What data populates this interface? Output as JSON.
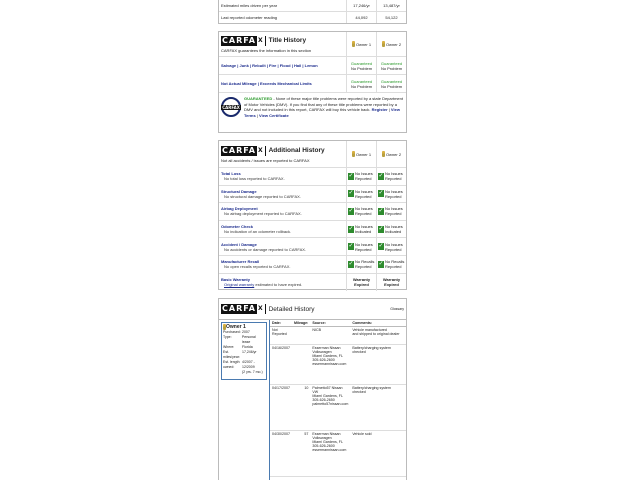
{
  "top_table": {
    "rows": [
      {
        "label": "Estimated miles driven per year",
        "o1": "17,246/yr",
        "o2": "13,487/yr"
      },
      {
        "label": "Last reported odometer reading",
        "o1": "44,092",
        "o2": "54,122"
      }
    ]
  },
  "logo_text": "CARFAX",
  "title_history": {
    "title": "Title History",
    "subtitle": "CARFAX guarantees the information in this section",
    "owner1": "Owner 1",
    "owner2": "Owner 2",
    "rows": [
      {
        "label": "Salvage | Junk | Rebuilt | Fire | Flood | Hail | Lemon",
        "o1a": "Guaranteed",
        "o1b": "No Problem",
        "o2a": "Guaranteed",
        "o2b": "No Problem"
      },
      {
        "label": "Not Actual Mileage | Exceeds Mechanical Limits",
        "o1a": "Guaranteed",
        "o1b": "No Problem",
        "o2a": "Guaranteed",
        "o2b": "No Problem"
      }
    ],
    "guarantee_label": "GUARANTEED",
    "guarantee_text": " - None of these major title problems were reported by a state Department of Motor Vehicles (DMV). If you find that any of these title problems were reported by a DMV and not included in this report, CARFAX will buy this vehicle back. ",
    "links": [
      "Register",
      "View Terms",
      "View Certificate"
    ]
  },
  "additional_history": {
    "title": "Additional History",
    "subtitle": "Not all accidents / issues are reported to CARFAX",
    "owner1": "Owner 1",
    "owner2": "Owner 2",
    "rows": [
      {
        "label": "Total Loss",
        "desc": "No total loss reported to CARFAX.",
        "o1": [
          "No Issues",
          "Reported"
        ],
        "o2": [
          "No Issues",
          "Reported"
        ]
      },
      {
        "label": "Structural Damage",
        "desc": "No structural damage reported to CARFAX.",
        "o1": [
          "No Issues",
          "Reported"
        ],
        "o2": [
          "No Issues",
          "Reported"
        ]
      },
      {
        "label": "Airbag Deployment",
        "desc": "No airbag deployment reported to CARFAX.",
        "o1": [
          "No Issues",
          "Reported"
        ],
        "o2": [
          "No Issues",
          "Reported"
        ]
      },
      {
        "label": "Odometer Check",
        "desc": "No indication of an odometer rollback.",
        "o1": [
          "No Issues",
          "Indicated"
        ],
        "o2": [
          "No Issues",
          "Indicated"
        ]
      },
      {
        "label": "Accident / Damage",
        "desc": "No accidents or damage reported to CARFAX.",
        "o1": [
          "No Issues",
          "Reported"
        ],
        "o2": [
          "No Issues",
          "Reported"
        ]
      },
      {
        "label": "Manufacturer Recall",
        "desc": "No open recalls reported to CARFAX.",
        "o1": [
          "No Recalls",
          "Reported"
        ],
        "o2": [
          "No Recalls",
          "Reported"
        ]
      }
    ],
    "warranty": {
      "label": "Basic Warranty",
      "link": "Original warranty",
      "desc": " estimated to have expired.",
      "o1": [
        "Warranty",
        "Expired"
      ],
      "o2": [
        "Warranty",
        "Expired"
      ]
    }
  },
  "detailed_history": {
    "title": "Detailed History",
    "glossary": "Glossary",
    "owner": {
      "title": "Owner 1",
      "fields": [
        [
          "Purchased:",
          "2007"
        ],
        [
          "Type:",
          "Personal lease"
        ],
        [
          "Where:",
          "Florida"
        ],
        [
          "Est. miles/year:",
          "17,246/yr"
        ],
        [
          "Est. length",
          "4/2007 -"
        ],
        [
          "owned:",
          "12/2009"
        ],
        [
          "",
          "(2 yrs. 7 mo.)"
        ]
      ]
    },
    "headers": [
      "Date:",
      "Mileage:",
      "Source:",
      "Comments:"
    ],
    "rows": [
      {
        "date": "Not Reported",
        "mileage": "",
        "source": [
          "NICB"
        ],
        "comments": [
          "Vehicle manufactured",
          "and shipped to original dealer"
        ]
      },
      {
        "date": "04/16/2007",
        "mileage": "",
        "source": [
          "Esserman Nissan",
          "Volkswagen",
          "Miami Gardens, FL",
          "305-626-2600",
          "essermannissan.com"
        ],
        "comments": [
          "Battery/charging system checked"
        ]
      },
      {
        "date": "04/17/2007",
        "mileage": "10",
        "source": [
          "Palmetto57 Nissan",
          "VW",
          "Miami Gardens, FL",
          "305-626-2650",
          "palmetto57nissan.com"
        ],
        "comments": [
          "Battery/charging system checked"
        ]
      },
      {
        "date": "04/30/2007",
        "mileage": "57",
        "source": [
          "Esserman Nissan",
          "Volkswagen",
          "Miami Gardens, FL",
          "305-626-2600",
          "essermannissan.com"
        ],
        "comments": [
          "Vehicle sold"
        ]
      }
    ]
  },
  "colors": {
    "link": "#1a2a8c",
    "guaranteed": "#2a9a2a",
    "check": "#2e8b2e"
  }
}
